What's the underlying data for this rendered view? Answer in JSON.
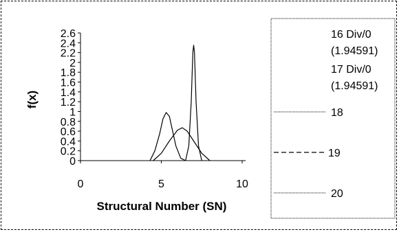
{
  "chart_data": {
    "type": "line",
    "title": "",
    "xlabel": "Structural Number (SN)",
    "ylabel": "f(x)",
    "xlim": [
      0,
      10
    ],
    "ylim": [
      0,
      2.6
    ],
    "x_ticks": [
      "0",
      "5",
      "10"
    ],
    "y_ticks": [
      "0",
      "0.2",
      "0.4",
      "0.6",
      "0.8",
      "1",
      "1.2",
      "1.4",
      "1.6",
      "1.8",
      "2",
      "2.2",
      "2.4",
      "2.6"
    ],
    "grid": false,
    "legend_position": "right",
    "legend": [
      {
        "label_line1": "16 Div/0",
        "label_line2": "(1.94591)",
        "style": "none"
      },
      {
        "label_line1": "17 Div/0",
        "label_line2": "(1.94591)",
        "style": "none"
      },
      {
        "label": "18",
        "style": "dotted-thin"
      },
      {
        "label": "19",
        "style": "dashed"
      },
      {
        "label": "20",
        "style": "dotted-thin"
      }
    ],
    "series": [
      {
        "style": "solid",
        "x": [
          4.3,
          4.6,
          4.9,
          5.1,
          5.3,
          5.5,
          5.7,
          5.9,
          6.2,
          6.5
        ],
        "y": [
          0,
          0.2,
          0.55,
          0.85,
          0.98,
          0.9,
          0.6,
          0.3,
          0.05,
          0
        ]
      },
      {
        "style": "solid",
        "x": [
          4.5,
          5.0,
          5.5,
          6.0,
          6.3,
          6.6,
          7.0,
          7.5,
          8.0
        ],
        "y": [
          0,
          0.15,
          0.4,
          0.62,
          0.67,
          0.6,
          0.4,
          0.15,
          0
        ]
      },
      {
        "style": "solid",
        "x": [
          6.5,
          6.7,
          6.85,
          6.95,
          7.0,
          7.05,
          7.15,
          7.3,
          7.5
        ],
        "y": [
          0,
          0.3,
          1.2,
          2.2,
          2.35,
          2.2,
          1.2,
          0.3,
          0
        ]
      }
    ]
  }
}
